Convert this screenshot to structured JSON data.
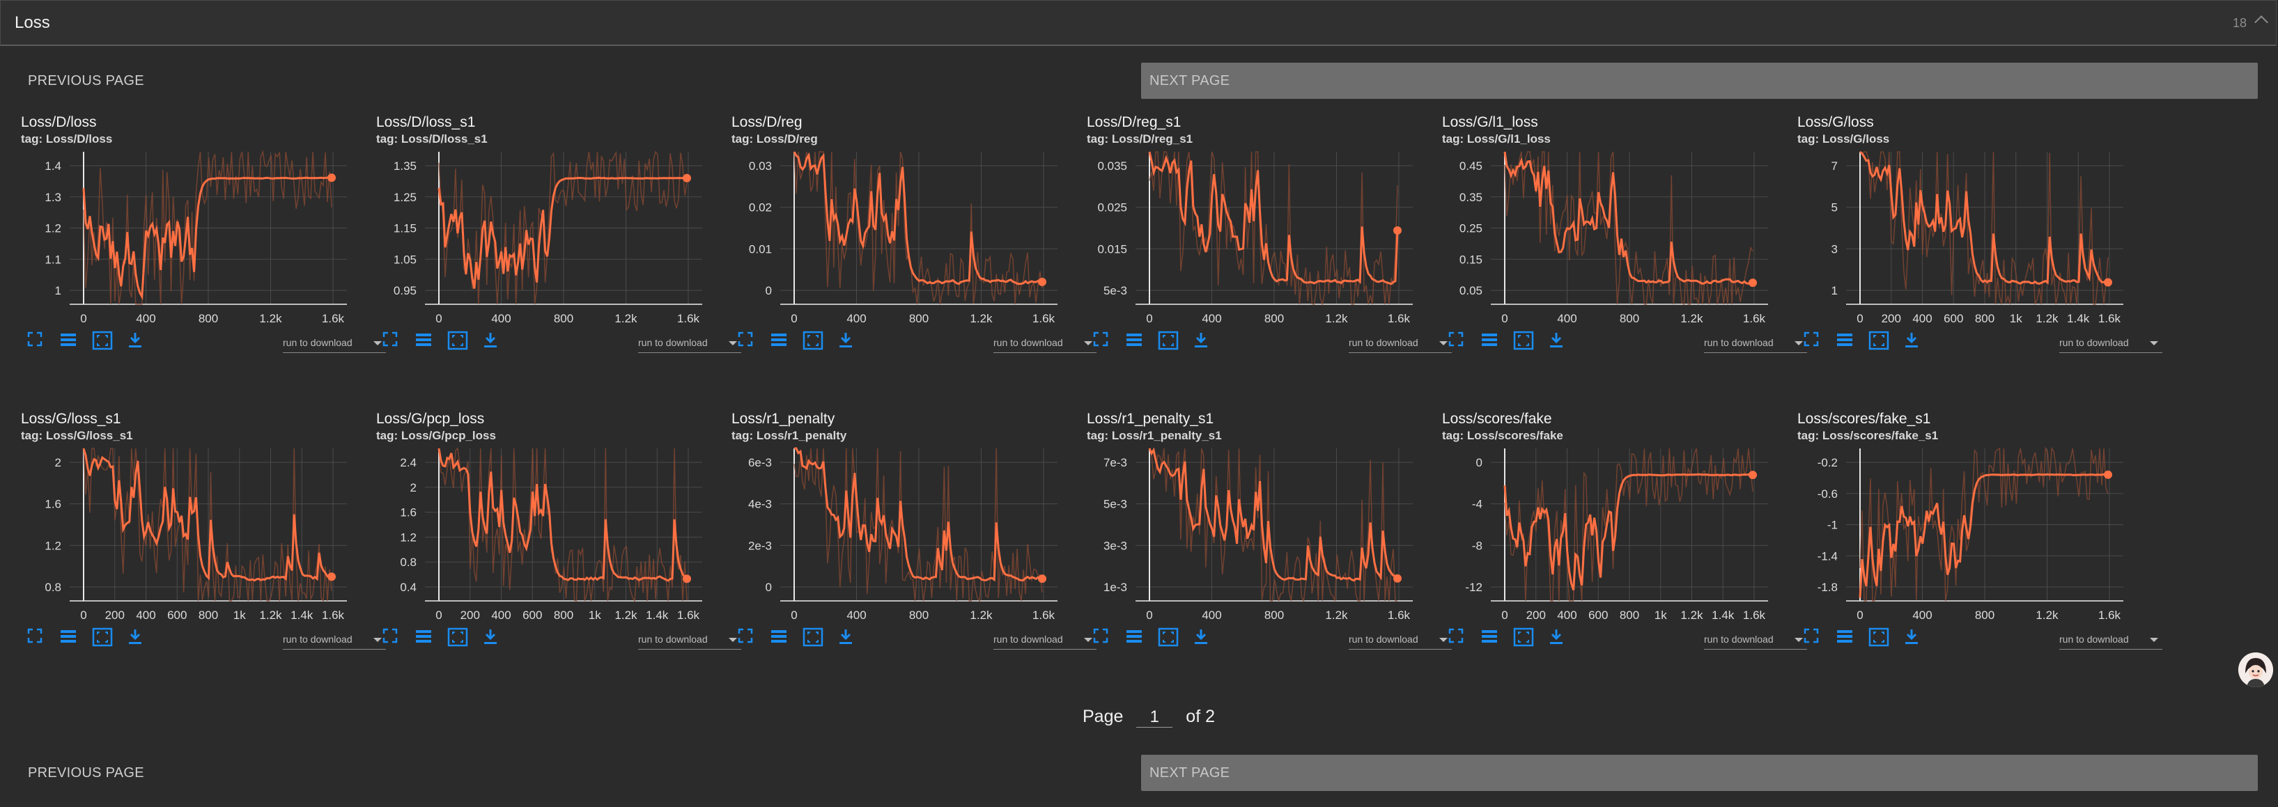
{
  "section": {
    "title": "Loss",
    "count": "18"
  },
  "pager": {
    "prev_label": "PREVIOUS PAGE",
    "next_label": "NEXT PAGE",
    "page_word": "Page",
    "current_page": "1",
    "of_label": "of 2"
  },
  "colors": {
    "line": "#ff7043",
    "raw": "#8a4a33",
    "grid": "#4b4b4b",
    "icon": "#1a8cf0"
  },
  "toolbar_icons": [
    "fullscreen-icon",
    "data-table-icon",
    "fit-domain-icon",
    "download-icon"
  ],
  "run_select_label": "run to download",
  "cards": [
    {
      "title": "Loss/D/loss",
      "tag": "tag: Loss/D/loss",
      "xticks": [
        "0",
        "400",
        "800",
        "1.2k",
        "1.6k"
      ],
      "yticks": [
        "1.4",
        "1.3",
        "1.2",
        "1.1",
        "1"
      ]
    },
    {
      "title": "Loss/D/loss_s1",
      "tag": "tag: Loss/D/loss_s1",
      "xticks": [
        "0",
        "400",
        "800",
        "1.2k",
        "1.6k"
      ],
      "yticks": [
        "1.35",
        "1.25",
        "1.15",
        "1.05",
        "0.95"
      ]
    },
    {
      "title": "Loss/D/reg",
      "tag": "tag: Loss/D/reg",
      "xticks": [
        "0",
        "400",
        "800",
        "1.2k",
        "1.6k"
      ],
      "yticks": [
        "0.03",
        "0.02",
        "0.01",
        "0"
      ]
    },
    {
      "title": "Loss/D/reg_s1",
      "tag": "tag: Loss/D/reg_s1",
      "xticks": [
        "0",
        "400",
        "800",
        "1.2k",
        "1.6k"
      ],
      "yticks": [
        "0.035",
        "0.025",
        "0.015",
        "5e-3"
      ]
    },
    {
      "title": "Loss/G/l1_loss",
      "tag": "tag: Loss/G/l1_loss",
      "xticks": [
        "0",
        "400",
        "800",
        "1.2k",
        "1.6k"
      ],
      "yticks": [
        "0.45",
        "0.35",
        "0.25",
        "0.15",
        "0.05"
      ]
    },
    {
      "title": "Loss/G/loss",
      "tag": "tag: Loss/G/loss",
      "xticks": [
        "0",
        "200",
        "400",
        "600",
        "800",
        "1k",
        "1.2k",
        "1.4k",
        "1.6k"
      ],
      "yticks": [
        "7",
        "5",
        "3",
        "1"
      ]
    },
    {
      "title": "Loss/G/loss_s1",
      "tag": "tag: Loss/G/loss_s1",
      "xticks": [
        "0",
        "200",
        "400",
        "600",
        "800",
        "1k",
        "1.2k",
        "1.4k",
        "1.6k"
      ],
      "yticks": [
        "2",
        "1.6",
        "1.2",
        "0.8"
      ]
    },
    {
      "title": "Loss/G/pcp_loss",
      "tag": "tag: Loss/G/pcp_loss",
      "xticks": [
        "0",
        "200",
        "400",
        "600",
        "800",
        "1k",
        "1.2k",
        "1.4k",
        "1.6k"
      ],
      "yticks": [
        "2.4",
        "2",
        "1.6",
        "1.2",
        "0.8",
        "0.4"
      ]
    },
    {
      "title": "Loss/r1_penalty",
      "tag": "tag: Loss/r1_penalty",
      "xticks": [
        "0",
        "400",
        "800",
        "1.2k",
        "1.6k"
      ],
      "yticks": [
        "6e-3",
        "4e-3",
        "2e-3",
        "0"
      ]
    },
    {
      "title": "Loss/r1_penalty_s1",
      "tag": "tag: Loss/r1_penalty_s1",
      "xticks": [
        "0",
        "400",
        "800",
        "1.2k",
        "1.6k"
      ],
      "yticks": [
        "7e-3",
        "5e-3",
        "3e-3",
        "1e-3"
      ]
    },
    {
      "title": "Loss/scores/fake",
      "tag": "tag: Loss/scores/fake",
      "xticks": [
        "0",
        "200",
        "400",
        "600",
        "800",
        "1k",
        "1.2k",
        "1.4k",
        "1.6k"
      ],
      "yticks": [
        "0",
        "-4",
        "-8",
        "-12"
      ]
    },
    {
      "title": "Loss/scores/fake_s1",
      "tag": "tag: Loss/scores/fake_s1",
      "xticks": [
        "0",
        "400",
        "800",
        "1.2k",
        "1.6k"
      ],
      "yticks": [
        "-0.2",
        "-0.6",
        "-1",
        "-1.4",
        "-1.8"
      ]
    }
  ]
}
